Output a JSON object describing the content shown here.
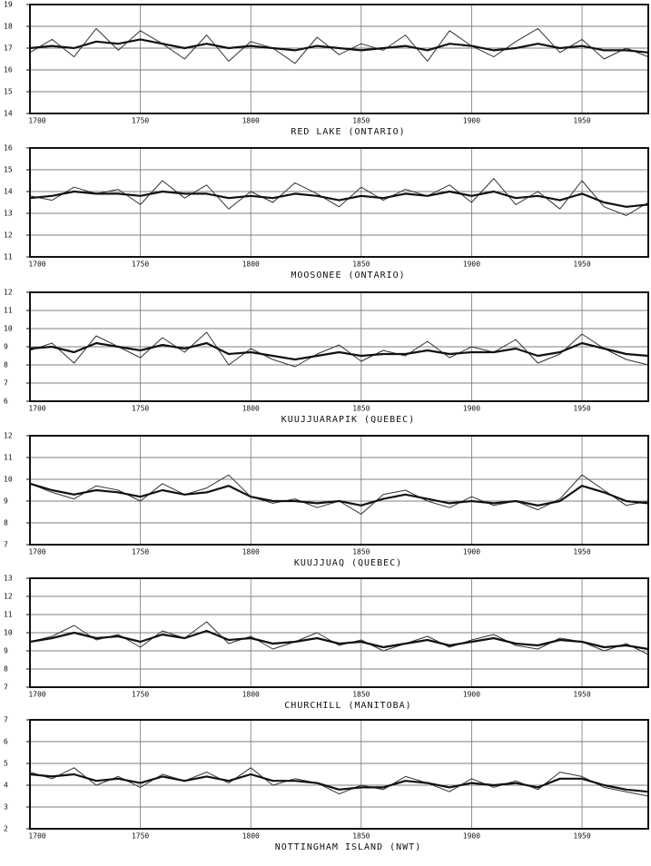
{
  "chart_data": [
    {
      "type": "line",
      "title": "RED LAKE (ONTARIO)",
      "x": [
        1700,
        1710,
        1720,
        1730,
        1740,
        1750,
        1760,
        1770,
        1780,
        1790,
        1800,
        1810,
        1820,
        1830,
        1840,
        1850,
        1860,
        1870,
        1880,
        1890,
        1900,
        1910,
        1920,
        1930,
        1940,
        1950,
        1960,
        1970,
        1980
      ],
      "series": [
        {
          "color": "#333333",
          "values": [
            16.8,
            17.4,
            16.6,
            17.9,
            16.9,
            17.8,
            17.2,
            16.5,
            17.6,
            16.4,
            17.3,
            17.0,
            16.3,
            17.5,
            16.7,
            17.2,
            16.9,
            17.6,
            16.4,
            17.8,
            17.1,
            16.6,
            17.3,
            17.9,
            16.8,
            17.4,
            16.5,
            17.0,
            16.6
          ]
        },
        {
          "color": "#111111",
          "values": [
            17.0,
            17.1,
            17.0,
            17.3,
            17.2,
            17.4,
            17.2,
            17.0,
            17.2,
            17.0,
            17.1,
            17.0,
            16.9,
            17.1,
            17.0,
            16.9,
            17.0,
            17.1,
            16.9,
            17.2,
            17.1,
            16.9,
            17.0,
            17.2,
            17.0,
            17.1,
            16.9,
            16.9,
            16.8
          ]
        }
      ],
      "xlim": [
        1700,
        1980
      ],
      "xticks": [
        1700,
        1750,
        1800,
        1850,
        1900,
        1950
      ],
      "ylim": [
        14,
        19
      ],
      "yticks": [
        14,
        15,
        16,
        17,
        18,
        19
      ],
      "grid": true
    },
    {
      "type": "line",
      "title": "MOOSONEE (ONTARIO)",
      "x": [
        1700,
        1710,
        1720,
        1730,
        1740,
        1750,
        1760,
        1770,
        1780,
        1790,
        1800,
        1810,
        1820,
        1830,
        1840,
        1850,
        1860,
        1870,
        1880,
        1890,
        1900,
        1910,
        1920,
        1930,
        1940,
        1950,
        1960,
        1970,
        1980
      ],
      "series": [
        {
          "color": "#333333",
          "values": [
            13.8,
            13.6,
            14.2,
            13.9,
            14.1,
            13.4,
            14.5,
            13.7,
            14.3,
            13.2,
            14.0,
            13.5,
            14.4,
            13.9,
            13.3,
            14.2,
            13.6,
            14.1,
            13.8,
            14.3,
            13.5,
            14.6,
            13.4,
            14.0,
            13.2,
            14.5,
            13.3,
            12.9,
            13.5
          ]
        },
        {
          "color": "#111111",
          "values": [
            13.7,
            13.8,
            14.0,
            13.9,
            13.9,
            13.8,
            14.0,
            13.9,
            13.9,
            13.7,
            13.8,
            13.7,
            13.9,
            13.8,
            13.6,
            13.8,
            13.7,
            13.9,
            13.8,
            14.0,
            13.8,
            14.0,
            13.7,
            13.8,
            13.6,
            13.9,
            13.5,
            13.3,
            13.4
          ]
        }
      ],
      "xlim": [
        1700,
        1980
      ],
      "xticks": [
        1700,
        1750,
        1800,
        1850,
        1900,
        1950
      ],
      "ylim": [
        11,
        16
      ],
      "yticks": [
        11,
        12,
        13,
        14,
        15,
        16
      ],
      "grid": true
    },
    {
      "type": "line",
      "title": "KUUJJUARAPIK (QUEBEC)",
      "x": [
        1700,
        1710,
        1720,
        1730,
        1740,
        1750,
        1760,
        1770,
        1780,
        1790,
        1800,
        1810,
        1820,
        1830,
        1840,
        1850,
        1860,
        1870,
        1880,
        1890,
        1900,
        1910,
        1920,
        1930,
        1940,
        1950,
        1960,
        1970,
        1980
      ],
      "series": [
        {
          "color": "#333333",
          "values": [
            8.8,
            9.2,
            8.1,
            9.6,
            9.0,
            8.4,
            9.5,
            8.7,
            9.8,
            8.0,
            8.9,
            8.3,
            7.9,
            8.6,
            9.1,
            8.2,
            8.8,
            8.5,
            9.3,
            8.4,
            9.0,
            8.7,
            9.4,
            8.1,
            8.6,
            9.7,
            8.9,
            8.3,
            8.0
          ]
        },
        {
          "color": "#111111",
          "values": [
            8.9,
            9.0,
            8.7,
            9.2,
            9.0,
            8.8,
            9.1,
            8.9,
            9.2,
            8.6,
            8.7,
            8.5,
            8.3,
            8.5,
            8.7,
            8.5,
            8.6,
            8.6,
            8.8,
            8.6,
            8.7,
            8.7,
            8.9,
            8.5,
            8.7,
            9.2,
            8.9,
            8.6,
            8.5
          ]
        }
      ],
      "xlim": [
        1700,
        1980
      ],
      "xticks": [
        1700,
        1750,
        1800,
        1850,
        1900,
        1950
      ],
      "ylim": [
        6,
        12
      ],
      "yticks": [
        6,
        7,
        8,
        9,
        10,
        11,
        12
      ],
      "grid": true
    },
    {
      "type": "line",
      "title": "KUUJJUAQ (QUEBEC)",
      "x": [
        1700,
        1710,
        1720,
        1730,
        1740,
        1750,
        1760,
        1770,
        1780,
        1790,
        1800,
        1810,
        1820,
        1830,
        1840,
        1850,
        1860,
        1870,
        1880,
        1890,
        1900,
        1910,
        1920,
        1930,
        1940,
        1950,
        1960,
        1970,
        1980
      ],
      "series": [
        {
          "color": "#333333",
          "values": [
            9.8,
            9.4,
            9.1,
            9.7,
            9.5,
            9.0,
            9.8,
            9.3,
            9.6,
            10.2,
            9.2,
            8.9,
            9.1,
            8.7,
            9.0,
            8.4,
            9.3,
            9.5,
            9.0,
            8.7,
            9.2,
            8.8,
            9.0,
            8.6,
            9.1,
            10.2,
            9.5,
            8.8,
            9.0
          ]
        },
        {
          "color": "#111111",
          "values": [
            9.8,
            9.5,
            9.3,
            9.5,
            9.4,
            9.2,
            9.5,
            9.3,
            9.4,
            9.7,
            9.2,
            9.0,
            9.0,
            8.9,
            9.0,
            8.8,
            9.1,
            9.3,
            9.1,
            8.9,
            9.0,
            8.9,
            9.0,
            8.8,
            9.0,
            9.7,
            9.4,
            9.0,
            8.9
          ]
        }
      ],
      "xlim": [
        1700,
        1980
      ],
      "xticks": [
        1700,
        1750,
        1800,
        1850,
        1900,
        1950
      ],
      "ylim": [
        7,
        12
      ],
      "yticks": [
        7,
        8,
        9,
        10,
        11,
        12
      ],
      "grid": true
    },
    {
      "type": "line",
      "title": "CHURCHILL (MANITOBA)",
      "x": [
        1700,
        1710,
        1720,
        1730,
        1740,
        1750,
        1760,
        1770,
        1780,
        1790,
        1800,
        1810,
        1820,
        1830,
        1840,
        1850,
        1860,
        1870,
        1880,
        1890,
        1900,
        1910,
        1920,
        1930,
        1940,
        1950,
        1960,
        1970,
        1980
      ],
      "series": [
        {
          "color": "#333333",
          "values": [
            9.5,
            9.8,
            10.4,
            9.6,
            9.9,
            9.2,
            10.1,
            9.7,
            10.6,
            9.4,
            9.8,
            9.1,
            9.5,
            10.0,
            9.3,
            9.6,
            9.0,
            9.4,
            9.8,
            9.2,
            9.6,
            9.9,
            9.3,
            9.1,
            9.7,
            9.5,
            9.0,
            9.4,
            8.8
          ]
        },
        {
          "color": "#111111",
          "values": [
            9.5,
            9.7,
            10.0,
            9.7,
            9.8,
            9.5,
            9.9,
            9.7,
            10.1,
            9.6,
            9.7,
            9.4,
            9.5,
            9.7,
            9.4,
            9.5,
            9.2,
            9.4,
            9.6,
            9.3,
            9.5,
            9.7,
            9.4,
            9.3,
            9.6,
            9.5,
            9.2,
            9.3,
            9.1
          ]
        }
      ],
      "xlim": [
        1700,
        1980
      ],
      "xticks": [
        1700,
        1750,
        1800,
        1850,
        1900,
        1950
      ],
      "ylim": [
        7,
        13
      ],
      "yticks": [
        7,
        8,
        9,
        10,
        11,
        12,
        13
      ],
      "grid": true
    },
    {
      "type": "line",
      "title": "NOTTINGHAM ISLAND (NWT)",
      "x": [
        1700,
        1710,
        1720,
        1730,
        1740,
        1750,
        1760,
        1770,
        1780,
        1790,
        1800,
        1810,
        1820,
        1830,
        1840,
        1850,
        1860,
        1870,
        1880,
        1890,
        1900,
        1910,
        1920,
        1930,
        1940,
        1950,
        1960,
        1970,
        1980
      ],
      "series": [
        {
          "color": "#333333",
          "values": [
            4.6,
            4.3,
            4.8,
            4.0,
            4.4,
            3.9,
            4.5,
            4.2,
            4.6,
            4.1,
            4.8,
            4.0,
            4.3,
            4.1,
            3.6,
            4.0,
            3.8,
            4.4,
            4.1,
            3.7,
            4.3,
            3.9,
            4.2,
            3.8,
            4.6,
            4.4,
            3.9,
            3.7,
            3.5
          ]
        },
        {
          "color": "#111111",
          "values": [
            4.5,
            4.4,
            4.5,
            4.2,
            4.3,
            4.1,
            4.4,
            4.2,
            4.4,
            4.2,
            4.5,
            4.2,
            4.2,
            4.1,
            3.8,
            3.9,
            3.9,
            4.2,
            4.1,
            3.9,
            4.1,
            4.0,
            4.1,
            3.9,
            4.3,
            4.3,
            4.0,
            3.8,
            3.7
          ]
        }
      ],
      "xlim": [
        1700,
        1980
      ],
      "xticks": [
        1700,
        1750,
        1800,
        1850,
        1900,
        1950
      ],
      "ylim": [
        2,
        7
      ],
      "yticks": [
        2,
        3,
        4,
        5,
        6,
        7
      ],
      "grid": true
    }
  ]
}
